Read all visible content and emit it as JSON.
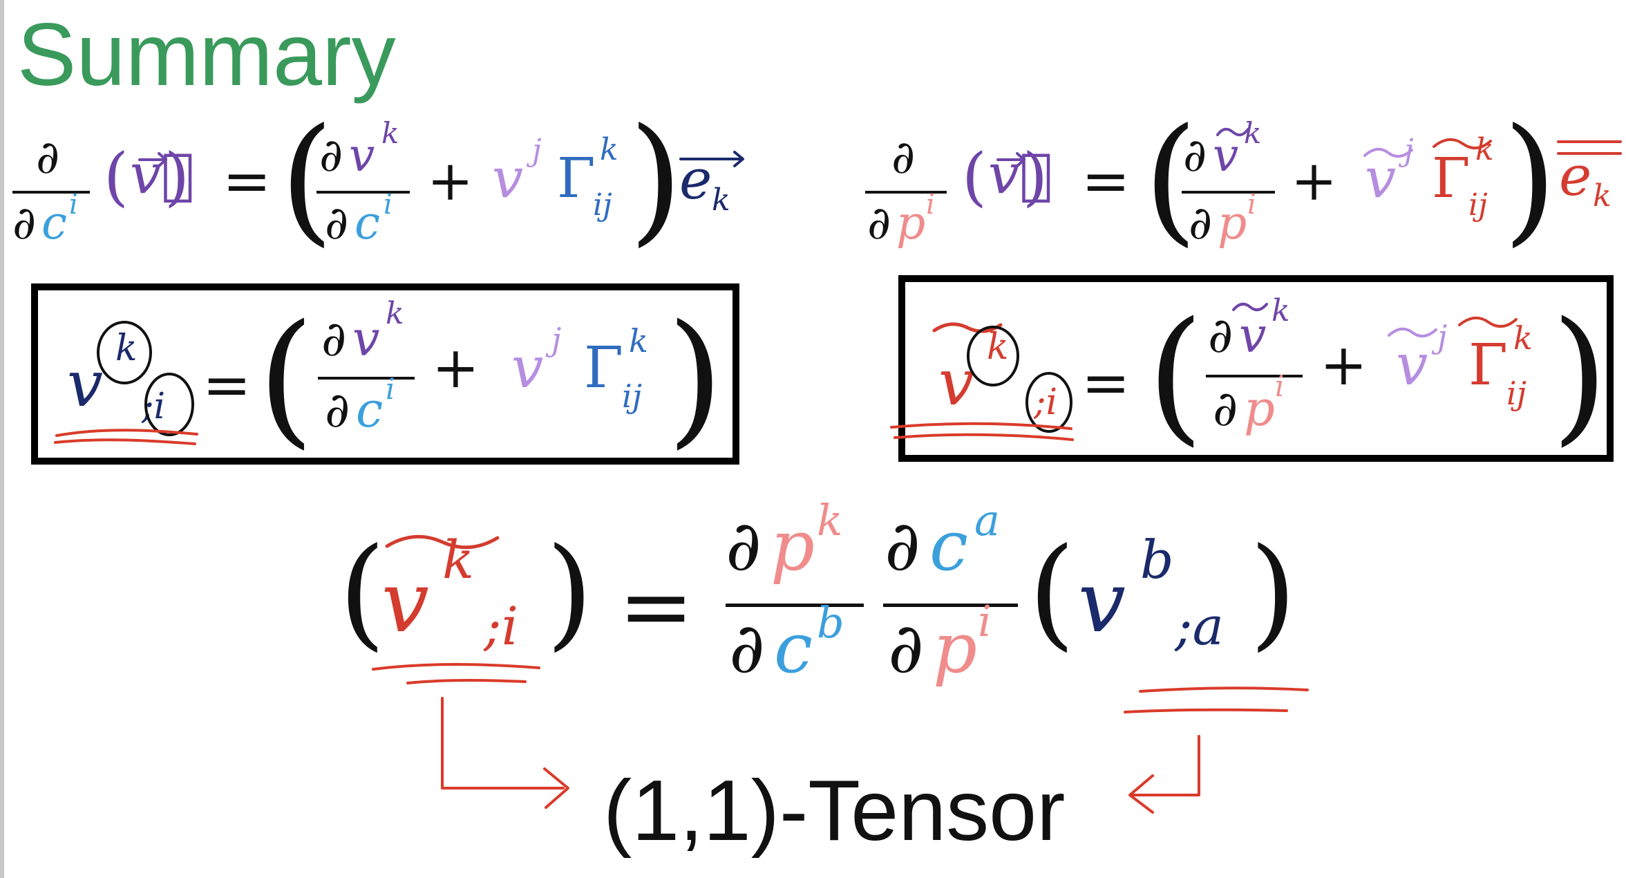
{
  "slide": {
    "title": "Summary",
    "tensor_label": "(1,1)-Tensor"
  },
  "symbols": {
    "partial": "∂",
    "equals": "=",
    "plus": "+",
    "lparen": "(",
    "rparen": ")",
    "vector_v": "v⃗",
    "v": "v",
    "gamma": "Γ",
    "e_basis": "e",
    "c": "c",
    "p": "p",
    "idx_i": "i",
    "idx_j": "j",
    "idx_k": "k",
    "idx_ij": "ij",
    "idx_a": "a",
    "idx_b": "b",
    "semicolon_i": ";i",
    "semicolon_a": ";a"
  },
  "colors": {
    "title": "#3a9a5b",
    "ink": "#111111",
    "navy": "#1b2a6b",
    "purple": "#6e45a8",
    "lilac": "#b68ee0",
    "cyan": "#3b9fdc",
    "blue": "#2f6cc0",
    "pink": "#f08c8c",
    "red": "#d43c2f",
    "annotation": "#d93b2a"
  }
}
